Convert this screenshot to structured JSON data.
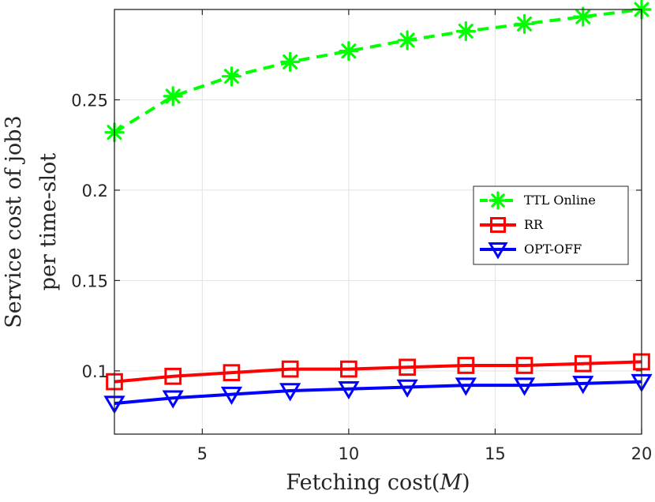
{
  "chart_data": {
    "type": "line",
    "title": "",
    "xlabel": "Fetching cost(",
    "xlabel_var": "M",
    "xlabel_close": ")",
    "ylabel_lines": [
      "Service cost of job3",
      "per time-slot"
    ],
    "xlim": [
      2,
      20
    ],
    "ylim": [
      0.065,
      0.3
    ],
    "xticks": [
      5,
      10,
      15,
      20
    ],
    "xtick_labels": [
      "5",
      "10",
      "15",
      "20"
    ],
    "yticks": [
      0.1,
      0.15,
      0.2,
      0.25
    ],
    "ytick_labels": [
      "0.1",
      "0.15",
      "0.2",
      "0.25"
    ],
    "grid": true,
    "legend_position": "right-center",
    "x": [
      2,
      4,
      6,
      8,
      10,
      12,
      14,
      16,
      18,
      20
    ],
    "series": [
      {
        "name": "TTL Online",
        "color": "#00ff00",
        "line_style": "dashed",
        "marker": "asterisk",
        "values": [
          0.232,
          0.252,
          0.263,
          0.271,
          0.277,
          0.283,
          0.288,
          0.292,
          0.296,
          0.3
        ]
      },
      {
        "name": "RR",
        "color": "#ff0000",
        "line_style": "solid",
        "marker": "square",
        "values": [
          0.094,
          0.097,
          0.099,
          0.101,
          0.101,
          0.102,
          0.103,
          0.103,
          0.104,
          0.105
        ]
      },
      {
        "name": "OPT-OFF",
        "color": "#0000ff",
        "line_style": "solid",
        "marker": "down-triangle",
        "values": [
          0.082,
          0.085,
          0.087,
          0.089,
          0.09,
          0.091,
          0.092,
          0.092,
          0.093,
          0.094
        ]
      }
    ]
  }
}
